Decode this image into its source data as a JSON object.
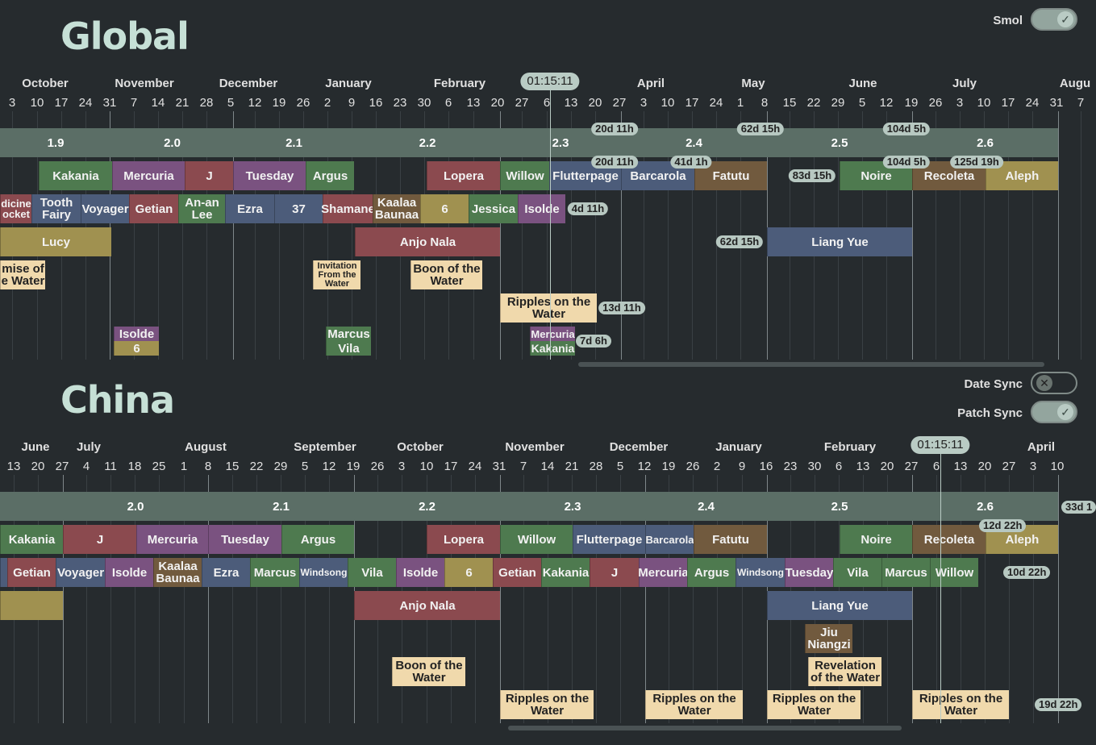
{
  "toggles": {
    "smol": "Smol",
    "date_sync": "Date Sync",
    "patch_sync": "Patch Sync"
  },
  "global": {
    "title": "Global",
    "now": "01:15:11",
    "months": [
      "October",
      "November",
      "December",
      "January",
      "February",
      "April",
      "May",
      "June",
      "July",
      "Augu"
    ],
    "days": [
      "3",
      "10",
      "17",
      "24",
      "31",
      "7",
      "14",
      "21",
      "28",
      "5",
      "12",
      "19",
      "26",
      "2",
      "9",
      "16",
      "23",
      "30",
      "6",
      "13",
      "20",
      "27",
      "6",
      "13",
      "20",
      "27",
      "3",
      "10",
      "17",
      "24",
      "1",
      "8",
      "15",
      "22",
      "29",
      "5",
      "12",
      "19",
      "26",
      "3",
      "10",
      "17",
      "24",
      "31",
      "7"
    ],
    "versions": [
      "1.9",
      "2.0",
      "2.1",
      "2.2",
      "2.3",
      "2.4",
      "2.5",
      "2.6"
    ],
    "pills": [
      "20d 11h",
      "62d 15h",
      "104d 5h",
      "20d 11h",
      "41d 1h",
      "104d 5h",
      "125d 19h",
      "83d 15h",
      "4d 11h",
      "62d 15h",
      "13d 11h",
      "7d 6h"
    ],
    "banners": [
      "Kakania",
      "Mercuria",
      "J",
      "Tuesday",
      "Argus",
      "Lopera",
      "Willow",
      "Flutterpage",
      "Barcarola",
      "Fatutu",
      "Noire",
      "Recoleta",
      "Aleph",
      "dicine ocket",
      "Tooth Fairy",
      "Voyager",
      "Getian",
      "An-an Lee",
      "Ezra",
      "37",
      "Shamane",
      "Kaalaa Baunaa",
      "6",
      "Jessica",
      "Isolde",
      "Lucy",
      "Anjo Nala",
      "Liang Yue",
      "mise of e Water",
      "Invitation From the Water",
      "Boon of the Water",
      "Ripples on the Water",
      "Isolde",
      "6",
      "Marcus",
      "Vila",
      "Mercuria",
      "Kakania"
    ]
  },
  "china": {
    "title": "China",
    "now": "01:15:11",
    "months": [
      "June",
      "July",
      "August",
      "September",
      "October",
      "November",
      "December",
      "January",
      "February",
      "April"
    ],
    "days": [
      "13",
      "20",
      "27",
      "4",
      "11",
      "18",
      "25",
      "1",
      "8",
      "15",
      "22",
      "29",
      "5",
      "12",
      "19",
      "26",
      "3",
      "10",
      "17",
      "24",
      "31",
      "7",
      "14",
      "21",
      "28",
      "5",
      "12",
      "19",
      "26",
      "2",
      "9",
      "16",
      "23",
      "30",
      "6",
      "13",
      "20",
      "27",
      "6",
      "13",
      "20",
      "27",
      "3",
      "10"
    ],
    "versions": [
      "2.0",
      "2.1",
      "2.2",
      "2.3",
      "2.4",
      "2.5",
      "2.6"
    ],
    "pills": [
      "12d 22h",
      "33d 1",
      "10d 22h",
      "19d 22h"
    ],
    "banners": [
      "Kakania",
      "J",
      "Mercuria",
      "Tuesday",
      "Argus",
      "Lopera",
      "Willow",
      "Flutterpage",
      "Barcarola",
      "Fatutu",
      "Noire",
      "Recoleta",
      "Aleph",
      "Getian",
      "Voyager",
      "Isolde",
      "Kaalaa Baunaa",
      "Ezra",
      "Marcus",
      "Windsong",
      "Vila",
      "Isolde",
      "6",
      "Getian",
      "Kakania",
      "J",
      "Mercuria",
      "Argus",
      "Windsong",
      "Tuesday",
      "Vila",
      "Marcus",
      "Willow",
      "Anjo Nala",
      "Liang Yue",
      "Jiu Niangzi",
      "Boon of the Water",
      "Revelation of the Water",
      "Ripples on the Water",
      "Ripples on the Water",
      "Ripples on the Water",
      "Ripples on the Water"
    ]
  },
  "colors": {
    "green": "#4e7a4f",
    "purple": "#7a5280",
    "red": "#8b4a4f",
    "blue": "#4c5c7a",
    "brown": "#715a3e",
    "olive": "#a09150",
    "tan": "#f0d9ac",
    "version": "#5b6e66"
  }
}
